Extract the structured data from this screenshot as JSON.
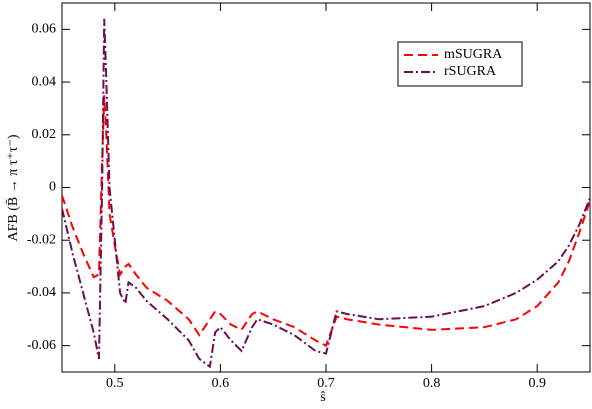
{
  "chart_data": {
    "type": "line",
    "xlabel": "ŝ",
    "ylabel": "AFB (B̄ → π τ⁺τ⁻)",
    "x": [
      0.45,
      0.46,
      0.47,
      0.48,
      0.485,
      0.488,
      0.49,
      0.492,
      0.495,
      0.5,
      0.505,
      0.51,
      0.513,
      0.52,
      0.53,
      0.55,
      0.57,
      0.58,
      0.59,
      0.595,
      0.6,
      0.61,
      0.62,
      0.63,
      0.635,
      0.65,
      0.67,
      0.69,
      0.7,
      0.71,
      0.72,
      0.75,
      0.8,
      0.85,
      0.88,
      0.9,
      0.92,
      0.93,
      0.94,
      0.95
    ],
    "series": [
      {
        "name": "mSUGRA",
        "color": "#ff0000",
        "dash": "dashed",
        "values": [
          -0.003,
          -0.015,
          -0.025,
          -0.034,
          -0.033,
          0.01,
          0.035,
          0.02,
          -0.01,
          -0.022,
          -0.033,
          -0.03,
          -0.029,
          -0.033,
          -0.038,
          -0.043,
          -0.05,
          -0.056,
          -0.05,
          -0.047,
          -0.048,
          -0.052,
          -0.054,
          -0.048,
          -0.047,
          -0.05,
          -0.053,
          -0.058,
          -0.06,
          -0.049,
          -0.05,
          -0.052,
          -0.054,
          -0.053,
          -0.05,
          -0.045,
          -0.036,
          -0.028,
          -0.017,
          -0.005
        ]
      },
      {
        "name": "rSUGRA",
        "color": "#6b0f4f",
        "dash": "dashdot",
        "values": [
          -0.008,
          -0.025,
          -0.04,
          -0.055,
          -0.065,
          0.0,
          0.064,
          0.04,
          0.0,
          -0.02,
          -0.04,
          -0.044,
          -0.036,
          -0.038,
          -0.043,
          -0.05,
          -0.058,
          -0.065,
          -0.068,
          -0.055,
          -0.053,
          -0.058,
          -0.062,
          -0.053,
          -0.05,
          -0.052,
          -0.056,
          -0.062,
          -0.063,
          -0.047,
          -0.048,
          -0.05,
          -0.049,
          -0.045,
          -0.04,
          -0.035,
          -0.028,
          -0.022,
          -0.014,
          -0.004
        ]
      }
    ],
    "xlim": [
      0.45,
      0.95
    ],
    "ylim": [
      -0.07,
      0.07
    ],
    "xticks": [
      0.5,
      0.6,
      0.7,
      0.8,
      0.9
    ],
    "yticks": [
      -0.06,
      -0.04,
      -0.02,
      0,
      0.02,
      0.04,
      0.06
    ],
    "legend": "upper right"
  }
}
